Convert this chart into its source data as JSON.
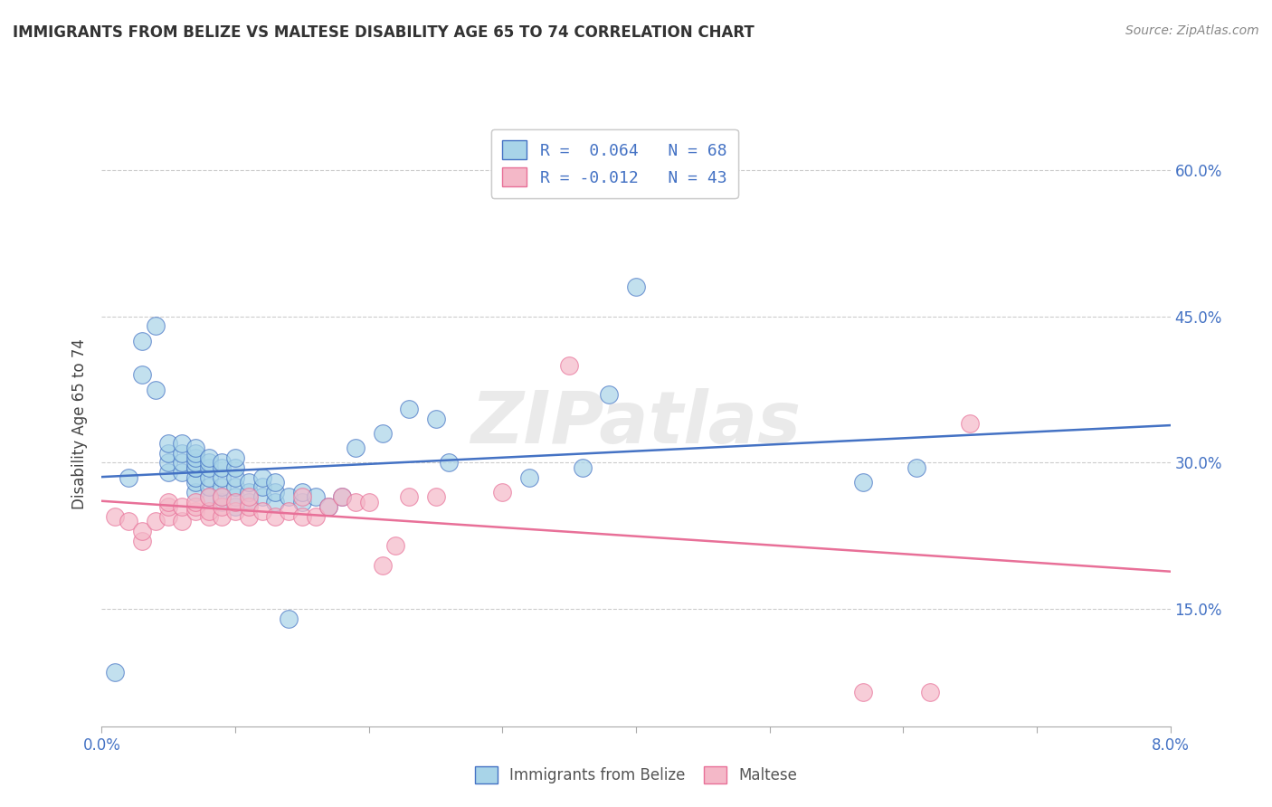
{
  "title": "IMMIGRANTS FROM BELIZE VS MALTESE DISABILITY AGE 65 TO 74 CORRELATION CHART",
  "source": "Source: ZipAtlas.com",
  "ylabel": "Disability Age 65 to 74",
  "ytick_labels": [
    "15.0%",
    "30.0%",
    "45.0%",
    "60.0%"
  ],
  "ytick_values": [
    0.15,
    0.3,
    0.45,
    0.6
  ],
  "xmin": 0.0,
  "xmax": 0.08,
  "ymin": 0.03,
  "ymax": 0.65,
  "watermark": "ZIPatlas",
  "legend_r1": "R =  0.064",
  "legend_n1": "N = 68",
  "legend_r2": "R = -0.012",
  "legend_n2": "N = 43",
  "color_belize": "#a8d4e8",
  "color_maltese": "#f4b8c8",
  "color_line_belize": "#4472c4",
  "color_line_maltese": "#e87098",
  "R1": 0.064,
  "N1": 68,
  "R2": -0.012,
  "N2": 43,
  "belize_x": [
    0.001,
    0.002,
    0.003,
    0.003,
    0.004,
    0.004,
    0.005,
    0.005,
    0.005,
    0.005,
    0.006,
    0.006,
    0.006,
    0.006,
    0.007,
    0.007,
    0.007,
    0.007,
    0.007,
    0.007,
    0.007,
    0.007,
    0.007,
    0.008,
    0.008,
    0.008,
    0.008,
    0.008,
    0.008,
    0.009,
    0.009,
    0.009,
    0.009,
    0.009,
    0.009,
    0.01,
    0.01,
    0.01,
    0.01,
    0.01,
    0.01,
    0.011,
    0.011,
    0.011,
    0.012,
    0.012,
    0.012,
    0.013,
    0.013,
    0.013,
    0.014,
    0.014,
    0.015,
    0.015,
    0.016,
    0.017,
    0.018,
    0.019,
    0.021,
    0.023,
    0.025,
    0.026,
    0.032,
    0.036,
    0.038,
    0.04,
    0.057,
    0.061
  ],
  "belize_y": [
    0.085,
    0.285,
    0.39,
    0.425,
    0.375,
    0.44,
    0.29,
    0.3,
    0.31,
    0.32,
    0.29,
    0.3,
    0.31,
    0.32,
    0.27,
    0.28,
    0.285,
    0.295,
    0.295,
    0.3,
    0.305,
    0.31,
    0.315,
    0.265,
    0.275,
    0.285,
    0.295,
    0.3,
    0.305,
    0.26,
    0.265,
    0.275,
    0.285,
    0.295,
    0.3,
    0.255,
    0.265,
    0.275,
    0.285,
    0.295,
    0.305,
    0.26,
    0.27,
    0.28,
    0.265,
    0.275,
    0.285,
    0.26,
    0.27,
    0.28,
    0.265,
    0.14,
    0.26,
    0.27,
    0.265,
    0.255,
    0.265,
    0.315,
    0.33,
    0.355,
    0.345,
    0.3,
    0.285,
    0.295,
    0.37,
    0.48,
    0.28,
    0.295
  ],
  "maltese_x": [
    0.001,
    0.002,
    0.003,
    0.003,
    0.004,
    0.005,
    0.005,
    0.005,
    0.006,
    0.006,
    0.007,
    0.007,
    0.007,
    0.008,
    0.008,
    0.008,
    0.009,
    0.009,
    0.009,
    0.01,
    0.01,
    0.011,
    0.011,
    0.011,
    0.012,
    0.013,
    0.014,
    0.015,
    0.015,
    0.016,
    0.017,
    0.018,
    0.019,
    0.02,
    0.021,
    0.022,
    0.023,
    0.025,
    0.03,
    0.035,
    0.057,
    0.062,
    0.065
  ],
  "maltese_y": [
    0.245,
    0.24,
    0.22,
    0.23,
    0.24,
    0.245,
    0.255,
    0.26,
    0.24,
    0.255,
    0.25,
    0.255,
    0.26,
    0.245,
    0.25,
    0.265,
    0.245,
    0.255,
    0.265,
    0.25,
    0.26,
    0.245,
    0.255,
    0.265,
    0.25,
    0.245,
    0.25,
    0.245,
    0.265,
    0.245,
    0.255,
    0.265,
    0.26,
    0.26,
    0.195,
    0.215,
    0.265,
    0.265,
    0.27,
    0.4,
    0.065,
    0.065,
    0.34
  ]
}
